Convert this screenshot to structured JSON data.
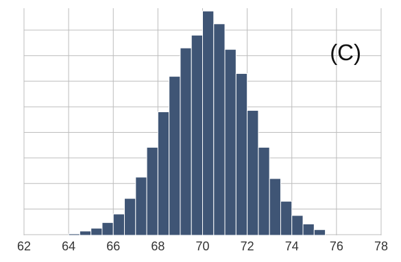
{
  "chart_data": {
    "type": "bar",
    "subtype": "histogram",
    "panel_label": "(C)",
    "title": "",
    "xlabel": "",
    "ylabel": "",
    "xlim": [
      62,
      78
    ],
    "x_ticks": [
      62,
      64,
      66,
      68,
      70,
      72,
      74,
      76,
      78
    ],
    "y_tick_labels_shown": false,
    "grid": true,
    "bin_width": 0.5,
    "bar_color": "#3f5575",
    "bar_edge_color": "#ffffff",
    "background_color": "#ffffff",
    "grid_color": "#bcbcbc",
    "bins": [
      {
        "x": 64.0,
        "height": 1
      },
      {
        "x": 64.5,
        "height": 3
      },
      {
        "x": 65.0,
        "height": 5
      },
      {
        "x": 65.5,
        "height": 9
      },
      {
        "x": 66.0,
        "height": 15
      },
      {
        "x": 66.5,
        "height": 26
      },
      {
        "x": 67.0,
        "height": 41
      },
      {
        "x": 67.5,
        "height": 62
      },
      {
        "x": 68.0,
        "height": 87
      },
      {
        "x": 68.5,
        "height": 112
      },
      {
        "x": 69.0,
        "height": 132
      },
      {
        "x": 69.5,
        "height": 141
      },
      {
        "x": 70.0,
        "height": 158
      },
      {
        "x": 70.5,
        "height": 149
      },
      {
        "x": 71.0,
        "height": 131
      },
      {
        "x": 71.5,
        "height": 114
      },
      {
        "x": 72.0,
        "height": 88
      },
      {
        "x": 72.5,
        "height": 62
      },
      {
        "x": 73.0,
        "height": 40
      },
      {
        "x": 73.5,
        "height": 24
      },
      {
        "x": 74.0,
        "height": 14
      },
      {
        "x": 74.5,
        "height": 8
      },
      {
        "x": 75.0,
        "height": 4
      }
    ],
    "ylim": [
      0,
      160
    ]
  }
}
